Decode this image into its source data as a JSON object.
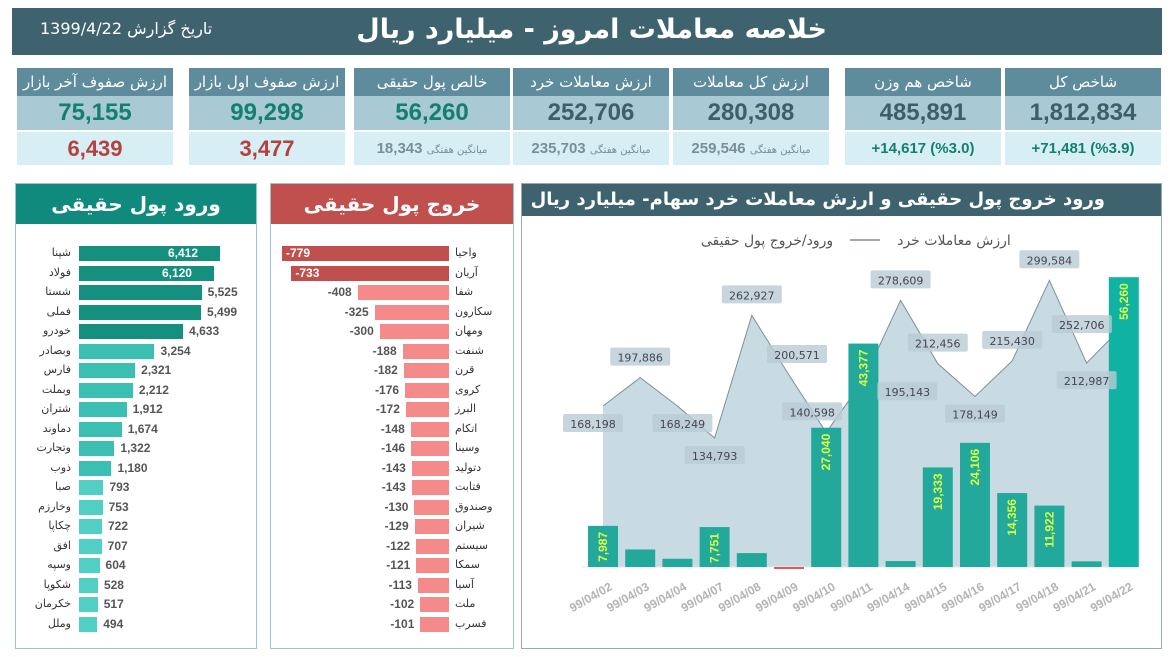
{
  "header": {
    "title": "خلاصه معاملات امروز - میلیارد ریال",
    "report_date": "تاریخ گزارش 1399/4/22"
  },
  "cards": [
    {
      "label": "شاخص کل",
      "value": "1,812,834",
      "sub": "+71,481 (%3.9)"
    },
    {
      "label": "شاخص هم وزن",
      "value": "485,891",
      "sub": "+14,617 (%3.0)"
    },
    {
      "label": "ارزش کل معاملات",
      "value": "280,308",
      "sub_label": "میانگین هفتگی",
      "sub": "259,546"
    },
    {
      "label": "ارزش معاملات خرد",
      "value": "252,706",
      "sub_label": "میانگین هفتگی",
      "sub": "235,703"
    },
    {
      "label": "خالص پول حقیقی",
      "value": "56,260",
      "sub_label": "میانگین هفتگی",
      "sub": "18,343"
    },
    {
      "label": "ارزش صفوف اول بازار",
      "value": "99,298",
      "sub": "3,477"
    },
    {
      "label": "ارزش صفوف آخر بازار",
      "value": "75,155",
      "sub": "6,439"
    }
  ],
  "inflow": {
    "title": "ورود پول حقیقی",
    "items": [
      {
        "name": "شپنا",
        "value": "6,412",
        "v": 6412
      },
      {
        "name": "فولاد",
        "value": "6,120",
        "v": 6120
      },
      {
        "name": "شستا",
        "value": "5,525",
        "v": 5525
      },
      {
        "name": "فملی",
        "value": "5,499",
        "v": 5499
      },
      {
        "name": "خودرو",
        "value": "4,633",
        "v": 4633
      },
      {
        "name": "وبصادر",
        "value": "3,254",
        "v": 3254
      },
      {
        "name": "فارس",
        "value": "2,321",
        "v": 2321
      },
      {
        "name": "وبملت",
        "value": "2,212",
        "v": 2212
      },
      {
        "name": "شتران",
        "value": "1,912",
        "v": 1912
      },
      {
        "name": "دماوند",
        "value": "1,674",
        "v": 1674
      },
      {
        "name": "وتجارت",
        "value": "1,322",
        "v": 1322
      },
      {
        "name": "ذوب",
        "value": "1,180",
        "v": 1180
      },
      {
        "name": "صبا",
        "value": "793",
        "v": 793
      },
      {
        "name": "وخارزم",
        "value": "753",
        "v": 753
      },
      {
        "name": "چکاپا",
        "value": "722",
        "v": 722
      },
      {
        "name": "افق",
        "value": "707",
        "v": 707
      },
      {
        "name": "وسپه",
        "value": "604",
        "v": 604
      },
      {
        "name": "شکوپا",
        "value": "528",
        "v": 528
      },
      {
        "name": "خکرمان",
        "value": "517",
        "v": 517
      },
      {
        "name": "وملل",
        "value": "494",
        "v": 494
      }
    ]
  },
  "outflow": {
    "title": "خروج پول حقیقی",
    "items": [
      {
        "name": "واحیا",
        "value": "-779",
        "v": 779
      },
      {
        "name": "آریان",
        "value": "-733",
        "v": 733
      },
      {
        "name": "شفا",
        "value": "-408",
        "v": 408
      },
      {
        "name": "سکارون",
        "value": "-325",
        "v": 325
      },
      {
        "name": "ومهان",
        "value": "-300",
        "v": 300
      },
      {
        "name": "شنفت",
        "value": "-188",
        "v": 188
      },
      {
        "name": "قرن",
        "value": "-182",
        "v": 182
      },
      {
        "name": "کروی",
        "value": "-176",
        "v": 176
      },
      {
        "name": "البرز",
        "value": "-172",
        "v": 172
      },
      {
        "name": "اتکام",
        "value": "-148",
        "v": 148
      },
      {
        "name": "وسینا",
        "value": "-146",
        "v": 146
      },
      {
        "name": "دتولید",
        "value": "-143",
        "v": 143
      },
      {
        "name": "فتابت",
        "value": "-143",
        "v": 143
      },
      {
        "name": "وصندوق",
        "value": "-130",
        "v": 130
      },
      {
        "name": "شیران",
        "value": "-129",
        "v": 129
      },
      {
        "name": "سیستم",
        "value": "-122",
        "v": 122
      },
      {
        "name": "سمکا",
        "value": "-121",
        "v": 121
      },
      {
        "name": "آسیا",
        "value": "-113",
        "v": 113
      },
      {
        "name": "ملت",
        "value": "-102",
        "v": 102
      },
      {
        "name": "فسرب",
        "value": "-101",
        "v": 101
      }
    ]
  },
  "chart_data": {
    "type": "bar+area",
    "title": "ورود خروج پول حقیقی و ارزش معاملات خرد سهام- میلیارد ریال",
    "legend": [
      "ارزش معاملات خرد",
      "ورود/خروج پول حقیقی"
    ],
    "legend_position": "top",
    "grid": false,
    "categories": [
      "99/04/02",
      "99/04/03",
      "99/04/04",
      "99/04/07",
      "99/04/08",
      "99/04/09",
      "99/04/10",
      "99/04/11",
      "99/04/14",
      "99/04/15",
      "99/04/16",
      "99/04/17",
      "99/04/18",
      "99/04/21",
      "99/04/22"
    ],
    "series": [
      {
        "name": "ورود/خروج پول حقیقی",
        "type": "bar",
        "axis": "primary",
        "values": [
          7987,
          3400,
          1600,
          7751,
          2700,
          -200,
          27040,
          43377,
          1150,
          19333,
          24106,
          14356,
          11922,
          1100,
          56260
        ],
        "labels": [
          "7,987",
          "",
          "",
          "7,751",
          "",
          "",
          "27,040",
          "43,377",
          "",
          "19,333",
          "24,106",
          "14,356",
          "11,922",
          "",
          "56,260"
        ]
      },
      {
        "name": "ارزش معاملات خرد",
        "type": "area",
        "axis": "secondary",
        "values": [
          168198,
          197886,
          168249,
          134793,
          262927,
          200571,
          140598,
          195143,
          278609,
          212456,
          178149,
          215430,
          299584,
          212987,
          252706
        ],
        "labels": [
          "168,198",
          "197,886",
          "168,249",
          "134,793",
          "262,927",
          "200,571",
          "140,598",
          "195,143",
          "278,609",
          "212,456",
          "178,149",
          "215,430",
          "299,584",
          "212,987",
          "252,706"
        ]
      }
    ],
    "primary_ylim": [
      0,
      56300
    ],
    "secondary_ylim": [
      0,
      303000
    ],
    "colors": {
      "bar": "#22a99c",
      "bar_last": "#10b3a3",
      "bar_negative": "#e05a5a",
      "bar_label": "#d9ff3d",
      "area_fill": "#c8dbe3",
      "area_line": "#7d8f97"
    }
  }
}
